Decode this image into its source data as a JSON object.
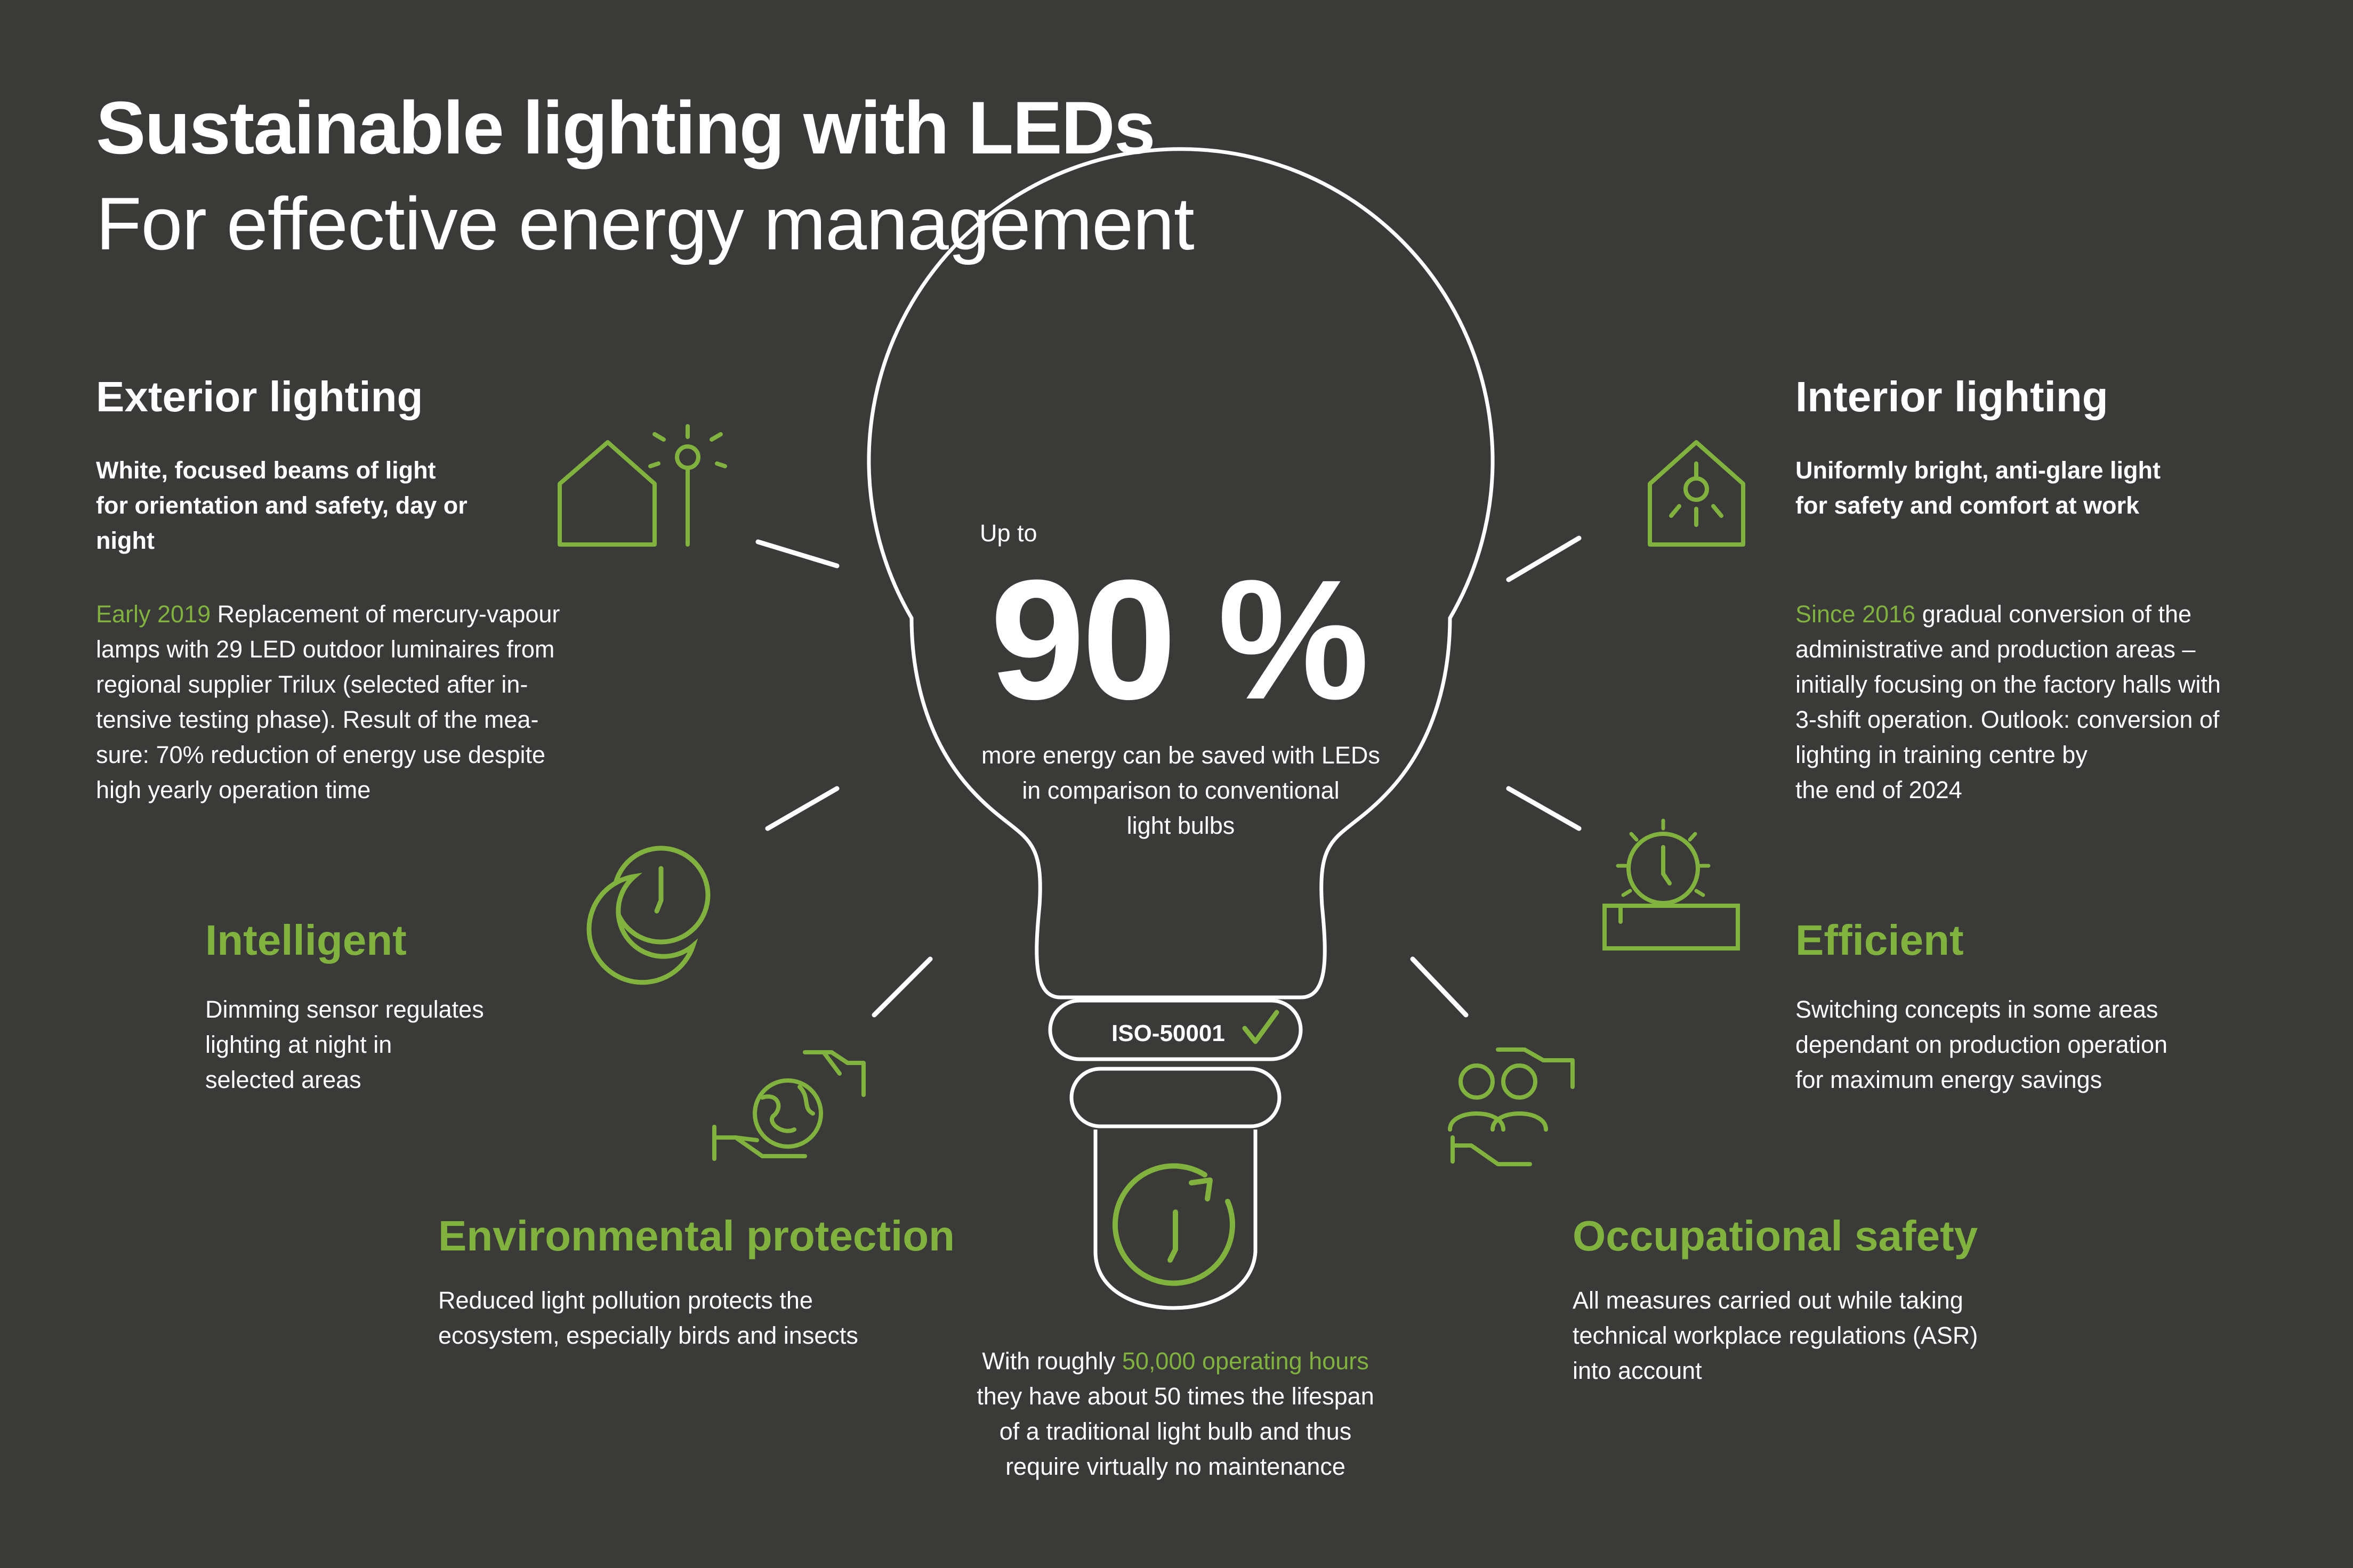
{
  "header": {
    "title": "Sustainable lighting with LEDs",
    "subtitle": "For effective energy management"
  },
  "bulb": {
    "up_to": "Up to",
    "percent": "90 %",
    "desc_line1": "more energy can be saved with LEDs",
    "desc_line2": "in comparison to conventional",
    "desc_line3": "light bulbs",
    "badge": "ISO-50001"
  },
  "exterior": {
    "heading": "Exterior lighting",
    "lead_line1": "White, focused beams of light",
    "lead_line2": "for orientation and safety, day or",
    "lead_line3": "night",
    "highlight": "Early 2019",
    "line1": " Replacement of mercury-vapour",
    "line2": "lamps with 29 LED outdoor luminaires from",
    "line3": "regional supplier Trilux (selected after in-",
    "line4": "tensive testing phase). Result of the mea-",
    "line5": "sure: 70% reduction of energy use despite",
    "line6": "high yearly operation time"
  },
  "interior": {
    "heading": "Interior lighting",
    "lead_line1": "Uniformly bright, anti-glare light",
    "lead_line2": "for safety and comfort at work",
    "highlight": "Since 2016",
    "line1": " gradual conversion of the",
    "line2": "administrative and production areas –",
    "line3": "initially focusing on the factory halls with",
    "line4": "3-shift operation. Outlook: conversion of",
    "line5": "lighting in training centre by",
    "line6": "the end of 2024"
  },
  "intelligent": {
    "heading": "Intelligent",
    "line1": "Dimming sensor regulates",
    "line2": "lighting at night in",
    "line3": "selected areas"
  },
  "efficient": {
    "heading": "Efficient",
    "line1": "Switching concepts in some areas",
    "line2": "dependant on production operation",
    "line3": "for maximum energy savings"
  },
  "environmental": {
    "heading": "Environmental protection",
    "line1": "Reduced light pollution protects the",
    "line2": "ecosystem, especially birds and insects"
  },
  "occupational": {
    "heading": "Occupational safety",
    "line1": "All measures carried out while taking",
    "line2": "technical workplace regulations (ASR)",
    "line3": "into account"
  },
  "lifespan": {
    "prefix": "With roughly ",
    "highlight": "50,000 operating hours",
    "line2": "they have about 50 times the lifespan",
    "line3": "of a traditional light bulb and thus",
    "line4": "require virtually no maintenance"
  },
  "icons": {
    "exterior": "house-with-street-lamp-icon",
    "interior": "house-with-ceiling-lamp-icon",
    "intelligent": "clock-with-moon-icon",
    "efficient": "clock-with-sun-icon",
    "environmental": "globe-in-hands-icon",
    "occupational": "people-in-hands-icon",
    "lifespan": "clock-refresh-icon",
    "badge": "checkmark-icon"
  },
  "colors": {
    "background": "#3a3a39",
    "accent": "#80b23d",
    "text": "#ffffff"
  }
}
